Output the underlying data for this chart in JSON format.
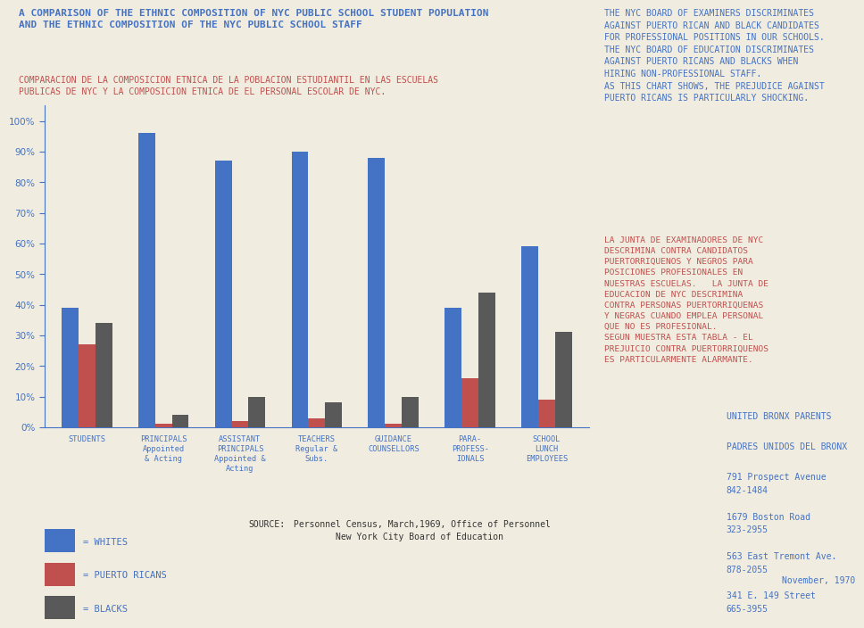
{
  "title_en": "A COMPARISON OF THE ETHNIC COMPOSITION OF NYC PUBLIC SCHOOL STUDENT POPULATION\nAND THE ETHNIC COMPOSITION OF THE NYC PUBLIC SCHOOL STAFF",
  "title_es": "COMPARACION DE LA COMPOSICION ETNICA DE LA POBLACION ESTUDIANTIL EN LAS ESCUELAS\nPUBLICAS DE NYC Y LA COMPOSICION ETNICA DE EL PERSONAL ESCOLAR DE NYC.",
  "categories": [
    "STUDENTS",
    "PRINCIPALS\nAppointed\n& Acting",
    "ASSISTANT\nPRINCIPALS\nAppointed &\nActing",
    "TEACHERS\nRegular &\nSubs.",
    "GUIDANCE\nCOUNSELLORS",
    "PARA-\nPROFESS-\nIONALS",
    "SCHOOL\nLUNCH\nEMPLOYEES"
  ],
  "whites": [
    39,
    96,
    87,
    90,
    88,
    39,
    59
  ],
  "puerto_ricans": [
    27,
    1,
    2,
    3,
    1,
    16,
    9
  ],
  "blacks": [
    34,
    4,
    10,
    8,
    10,
    44,
    31
  ],
  "color_white": "#4472c4",
  "color_pr": "#c0504d",
  "color_black": "#595959",
  "bg_color": "#f0ece0",
  "text_color_en": "#4472c4",
  "text_color_es": "#c0504d",
  "text_right_en": "THE NYC BOARD OF EXAMINERS DISCRIMINATES\nAGAINST PUERTO RICAN AND BLACK CANDIDATES\nFOR PROFESSIONAL POSITIONS IN OUR SCHOOLS.\nTHE NYC BOARD OF EDUCATION DISCRIMINATES\nAGAINST PUERTO RICANS AND BLACKS WHEN\nHIRING NON-PROFESSIONAL STAFF.\nAS THIS CHART SHOWS, THE PREJUDICE AGAINST\nPUERTO RICANS IS PARTICULARLY SHOCKING.",
  "text_right_es": "LA JUNTA DE EXAMINADORES DE NYC\nDESCRIMINA CONTRA CANDIDATOS\nPUERTORRIQUENOS Y NEGROS PARA\nPOSICIONES PROFESIONALES EN\nNUESTRAS ESCUELAS.   LA JUNTA DE\nEDUCACION DE NYC DESCRIMINA\nCONTRA PERSONAS PUERTORRIQUENAS\nY NEGRAS CUANDO EMPLEA PERSONAL\nQUE NO ES PROFESIONAL.\nSEGUN MUESTRA ESTA TABLA - EL\nPREJUICIO CONTRA PUERTORRIQUENOS\nES PARTICULARMENTE ALARMANTE.",
  "text_org_line1": "UNITED BRONX PARENTS",
  "text_org_line2": "PADRES UNIDOS DEL BRONX",
  "text_org_addr": "791 Prospect Avenue\n842-1484\n\n1679 Boston Road\n323-2955\n\n563 East Tremont Ave.\n878-2055\n\n341 E. 149 Street\n665-3955",
  "text_org_date": "November, 1970",
  "source_label": "SOURCE:",
  "source_text": "Personnel Census, March,1969, Office of Personnel\n        New York City Board of Education",
  "ylim": [
    0,
    105
  ],
  "yticks": [
    0,
    10,
    20,
    30,
    40,
    50,
    60,
    70,
    80,
    90,
    100
  ]
}
